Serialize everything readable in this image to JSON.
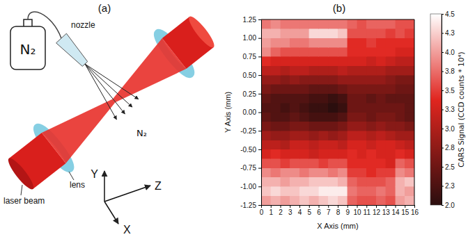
{
  "diagram": {
    "title": "(a)",
    "gas_bottle": "N₂",
    "nozzle": "nozzle",
    "gas_flow": "N₂",
    "lens": "lens",
    "laser_beam": "laser beam",
    "axes": {
      "x": "X",
      "y": "Y",
      "z": "Z"
    }
  },
  "chart_data": {
    "type": "heatmap",
    "title": "(b)",
    "x_label": "X Axis (mm)",
    "y_label": "Y Axis (mm)",
    "xlim": [
      0,
      16
    ],
    "xticks": [
      0,
      1,
      2,
      3,
      4,
      5,
      6,
      7,
      8,
      9,
      10,
      11,
      12,
      13,
      14,
      15,
      16
    ],
    "ylim": [
      -1.25,
      1.25
    ],
    "yticks": [
      -1.25,
      {
        "value": -1,
        "label": "-1.00"
      },
      -0.75,
      {
        "value": -0.5,
        "label": "-0.50"
      },
      -0.25,
      {
        "value": 0,
        "label": "0.00"
      },
      0.25,
      {
        "value": 0.5,
        "label": "0.50"
      },
      0.75,
      {
        "value": 1,
        "label": "1.00"
      },
      1.25
    ],
    "x_bins": [
      0,
      1,
      2,
      3,
      4,
      5,
      6,
      7,
      8,
      9,
      10,
      11,
      12,
      13,
      14,
      15,
      16
    ],
    "y_bins": [
      -1.25,
      -1.125,
      -1,
      -0.875,
      -0.75,
      -0.625,
      -0.5,
      -0.375,
      -0.25,
      -0.125,
      0,
      0.125,
      0.25,
      0.375,
      0.5,
      0.625,
      0.75,
      0.875,
      1,
      1.125,
      1.25
    ],
    "z": [
      [
        4.0,
        4.1,
        4.0,
        4.1,
        4.2,
        4.1,
        4.2,
        4.3,
        4.2,
        3.7,
        3.6,
        3.6,
        3.7,
        3.6,
        4.0,
        4.1
      ],
      [
        4.2,
        4.3,
        4.2,
        4.2,
        4.3,
        4.3,
        4.4,
        4.4,
        4.4,
        3.8,
        3.7,
        3.7,
        3.8,
        3.7,
        4.1,
        4.0
      ],
      [
        4.1,
        4.1,
        4.0,
        4.1,
        4.1,
        4.2,
        4.2,
        4.2,
        4.1,
        3.7,
        3.6,
        3.6,
        3.6,
        3.7,
        4.1,
        4.2
      ],
      [
        3.9,
        3.8,
        3.9,
        3.9,
        3.8,
        3.9,
        3.9,
        3.8,
        3.9,
        3.5,
        3.5,
        3.4,
        3.5,
        3.5,
        3.9,
        3.8
      ],
      [
        3.6,
        3.6,
        3.5,
        3.6,
        3.6,
        3.6,
        3.5,
        3.6,
        3.6,
        3.4,
        3.4,
        3.4,
        3.4,
        3.3,
        3.7,
        3.6
      ],
      [
        3.3,
        3.4,
        3.3,
        3.3,
        3.3,
        3.2,
        3.3,
        3.3,
        3.3,
        3.4,
        3.3,
        3.4,
        3.3,
        3.3,
        3.4,
        3.3
      ],
      [
        3.1,
        3.1,
        3.0,
        3.2,
        3.2,
        3.1,
        3.2,
        3.2,
        3.1,
        3.3,
        3.3,
        3.2,
        3.3,
        3.3,
        3.2,
        3.1
      ],
      [
        2.9,
        2.8,
        2.8,
        2.9,
        2.9,
        2.8,
        2.9,
        2.8,
        2.9,
        3.1,
        3.1,
        3.0,
        3.1,
        3.0,
        2.9,
        2.9
      ],
      [
        2.6,
        2.5,
        2.5,
        2.6,
        2.6,
        2.5,
        2.5,
        2.5,
        2.6,
        2.8,
        2.8,
        2.7,
        2.8,
        2.7,
        2.7,
        2.6
      ],
      [
        2.4,
        2.3,
        2.3,
        2.4,
        2.3,
        2.2,
        2.2,
        2.2,
        2.3,
        2.6,
        2.6,
        2.5,
        2.6,
        2.6,
        2.5,
        2.4
      ],
      [
        2.3,
        2.3,
        2.2,
        2.3,
        2.2,
        2.1,
        2.1,
        2.0,
        2.1,
        2.5,
        2.5,
        2.5,
        2.5,
        2.5,
        2.5,
        2.4
      ],
      [
        2.4,
        2.3,
        2.3,
        2.3,
        2.3,
        2.2,
        2.2,
        2.1,
        2.2,
        2.5,
        2.5,
        2.4,
        2.5,
        2.4,
        2.4,
        2.4
      ],
      [
        2.6,
        2.5,
        2.5,
        2.5,
        2.5,
        2.4,
        2.4,
        2.4,
        2.5,
        2.6,
        2.6,
        2.6,
        2.6,
        2.6,
        2.5,
        2.5
      ],
      [
        2.8,
        2.8,
        2.7,
        2.8,
        2.7,
        2.7,
        2.7,
        2.7,
        2.8,
        2.8,
        2.8,
        2.8,
        2.8,
        2.7,
        2.6,
        2.6
      ],
      [
        3.1,
        3.1,
        3.0,
        3.1,
        3.1,
        3.0,
        3.0,
        3.0,
        3.1,
        3.0,
        3.0,
        3.0,
        3.0,
        2.9,
        2.9,
        2.9
      ],
      [
        3.4,
        3.3,
        3.3,
        3.3,
        3.3,
        3.3,
        3.3,
        3.3,
        3.3,
        3.3,
        3.3,
        3.2,
        3.3,
        3.2,
        3.1,
        3.1
      ],
      [
        3.9,
        3.7,
        3.6,
        3.6,
        3.6,
        3.6,
        3.6,
        3.6,
        3.6,
        3.4,
        3.4,
        3.4,
        3.4,
        3.4,
        3.3,
        3.3
      ],
      [
        4.0,
        3.9,
        3.9,
        3.8,
        3.8,
        3.9,
        3.9,
        3.9,
        3.9,
        3.4,
        3.4,
        3.5,
        3.4,
        3.4,
        3.4,
        3.4
      ],
      [
        4.1,
        4.1,
        4.0,
        4.0,
        4.0,
        4.3,
        4.3,
        4.3,
        4.2,
        3.6,
        3.6,
        3.6,
        3.6,
        3.5,
        3.6,
        3.5
      ],
      [
        3.8,
        3.9,
        3.8,
        3.8,
        3.8,
        3.8,
        3.8,
        3.8,
        3.8,
        3.7,
        3.6,
        3.7,
        3.7,
        3.7,
        3.6,
        3.6
      ]
    ],
    "colorbar_label": "CARS Signal (CCD counts * 10⁴)",
    "zlim": [
      2,
      4.5
    ],
    "zticks": [
      {
        "value": 2,
        "label": "2.0"
      },
      {
        "value": 2.25,
        "label": "2.3"
      },
      2.5,
      {
        "value": 2.75,
        "label": "2.8"
      },
      {
        "value": 3,
        "label": "3.0"
      },
      {
        "value": 3.25,
        "label": "3.3"
      },
      3.5,
      {
        "value": 3.75,
        "label": "3.8"
      },
      {
        "value": 4,
        "label": "4.0"
      },
      {
        "value": 4.25,
        "label": "4.3"
      },
      4.5
    ]
  }
}
